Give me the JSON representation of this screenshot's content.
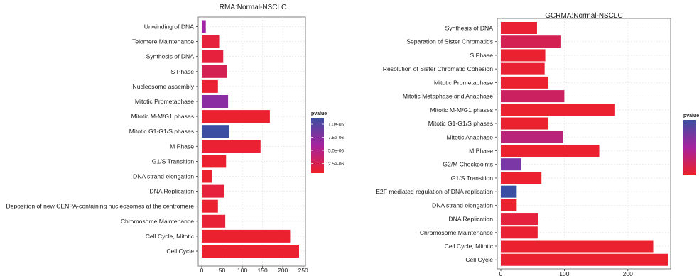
{
  "chart_data": [
    {
      "type": "bar",
      "orientation": "horizontal",
      "title": "RMA:Normal-NSCLC",
      "xlabel": "",
      "ylabel": "",
      "xlim": [
        0,
        250
      ],
      "xticks": [
        0,
        50,
        100,
        150,
        200,
        250
      ],
      "grid": true,
      "legend": {
        "title": "pvalue",
        "placement": "right",
        "labels": [
          "1.0e-05",
          "7.5e-06",
          "5.0e-06",
          "2.5e-06"
        ]
      },
      "categories": [
        "Unwinding of DNA",
        "Telomere Maintenance",
        "Synthesis of DNA",
        "S Phase",
        "Nucleosome assembly",
        "Mitotic Prometaphase",
        "Mitotic M-M/G1 phases",
        "Mitotic G1-G1/S phases",
        "M Phase",
        "G1/S Transition",
        "DNA strand elongation",
        "DNA Replication",
        "Deposition of new CENPA-containing nucleosomes at the centromere",
        "Chromosome Maintenance",
        "Cell Cycle, Mitotic",
        "Cell Cycle"
      ],
      "values": [
        10,
        43,
        53,
        63,
        40,
        65,
        168,
        68,
        145,
        60,
        25,
        56,
        40,
        58,
        218,
        240
      ],
      "colors": [
        "#a222a6",
        "#e5213d",
        "#e5213d",
        "#d42154",
        "#ea2133",
        "#8a2da2",
        "#ec2130",
        "#3b4ea2",
        "#ea2133",
        "#ec2130",
        "#ec2130",
        "#e5213d",
        "#ec2130",
        "#e82136",
        "#ec2130",
        "#ec2130"
      ]
    },
    {
      "type": "bar",
      "orientation": "horizontal",
      "title": "GCRMA:Normal-NSCLC",
      "xlabel": "",
      "ylabel": "",
      "xlim": [
        0,
        265
      ],
      "xticks": [
        0,
        100,
        200
      ],
      "grid": true,
      "legend": {
        "title": "pvalue",
        "placement": "right",
        "labels": []
      },
      "categories": [
        "Synthesis of DNA",
        "Separation of Sister Chromatids",
        "S Phase",
        "Resolution of Sister Chromatid Cohesion",
        "Mitotic Prometaphase",
        "Mitotic Metaphase and Anaphase",
        "Mitotic M-M/G1 phases",
        "Mitotic G1-G1/S phases",
        "Mitotic Anaphase",
        "M Phase",
        "G2/M Checkpoints",
        "G1/S Transition",
        "E2F mediated regulation of DNA replication",
        "DNA strand elongation",
        "DNA Replication",
        "Chromosome Maintenance",
        "Cell Cycle, Mitotic",
        "Cell Cycle"
      ],
      "values": [
        57,
        95,
        70,
        69,
        75,
        100,
        180,
        75,
        98,
        155,
        32,
        64,
        25,
        25,
        59,
        58,
        240,
        263
      ],
      "colors": [
        "#ea2133",
        "#d42154",
        "#ec2130",
        "#ea2133",
        "#ec2130",
        "#cc2160",
        "#ec2130",
        "#ec2130",
        "#b9237a",
        "#ec2130",
        "#7a37a5",
        "#ec2130",
        "#3a4fa3",
        "#ec2130",
        "#e5213d",
        "#ea2133",
        "#ec2130",
        "#ec2130"
      ]
    }
  ],
  "palette": {
    "low": "#ee2027",
    "mid": "#a6239e",
    "high": "#3b4fa1"
  }
}
